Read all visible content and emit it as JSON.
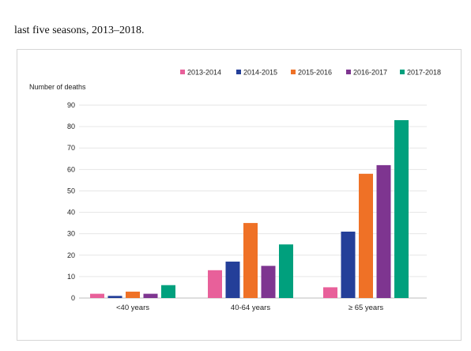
{
  "caption": "last five seasons, 2013–2018.",
  "chart_data": {
    "type": "bar",
    "ylabel": "Number of deaths",
    "xlabel": "",
    "ylim": [
      0,
      90
    ],
    "yticks": [
      0,
      10,
      20,
      30,
      40,
      50,
      60,
      70,
      80,
      90
    ],
    "grid": true,
    "legend_position": "top-right",
    "categories": [
      "<40 years",
      "40-64 years",
      "≥ 65 years"
    ],
    "series": [
      {
        "name": "2013-2014",
        "color": "#e8609a",
        "values": [
          2,
          13,
          5
        ]
      },
      {
        "name": "2014-2015",
        "color": "#243f99",
        "values": [
          1,
          17,
          31
        ]
      },
      {
        "name": "2015-2016",
        "color": "#ef7126",
        "values": [
          3,
          35,
          58
        ]
      },
      {
        "name": "2016-2017",
        "color": "#7e3590",
        "values": [
          2,
          15,
          62
        ]
      },
      {
        "name": "2017-2018",
        "color": "#00a07d",
        "values": [
          6,
          25,
          83
        ]
      }
    ]
  }
}
